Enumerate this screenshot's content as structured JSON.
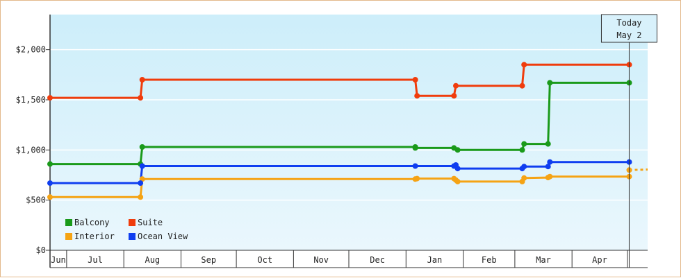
{
  "chart_data": {
    "type": "line",
    "step": true,
    "title": "",
    "xlabel": "",
    "ylabel": "",
    "y_ticks": [
      "$0",
      "$500",
      "$1,000",
      "$1,500",
      "$2,000"
    ],
    "y_tick_values": [
      0,
      500,
      1000,
      1500,
      2000
    ],
    "ylim": [
      0,
      2350
    ],
    "x_months": [
      "Jun",
      "Jul",
      "Aug",
      "Sep",
      "Oct",
      "Nov",
      "Dec",
      "Jan",
      "Feb",
      "Mar",
      "Apr"
    ],
    "x_month_starts": [
      "2016-06-01",
      "2016-07-01",
      "2016-08-01",
      "2016-09-01",
      "2016-10-01",
      "2016-11-01",
      "2016-12-01",
      "2017-01-01",
      "2017-02-01",
      "2017-03-01",
      "2017-04-01",
      "2017-05-01"
    ],
    "xlim": [
      "2016-06-22",
      "2017-05-12"
    ],
    "today": {
      "line1": "Today",
      "line2": "May 2",
      "date": "2017-05-02"
    },
    "background": {
      "top": "#cdeefa",
      "bottom": "#eaf7fd"
    },
    "legend_position": "bottom-left",
    "series": [
      {
        "name": "Balcony",
        "color": "#1a9a1a",
        "points": [
          [
            "2016-06-22",
            860
          ],
          [
            "2016-08-10",
            860
          ],
          [
            "2016-08-11",
            1030
          ],
          [
            "2017-01-06",
            1030
          ],
          [
            "2017-01-06",
            1020
          ],
          [
            "2017-01-27",
            1020
          ],
          [
            "2017-01-29",
            1000
          ],
          [
            "2017-03-05",
            1000
          ],
          [
            "2017-03-06",
            1060
          ],
          [
            "2017-03-19",
            1060
          ],
          [
            "2017-03-20",
            1670
          ],
          [
            "2017-05-02",
            1670
          ]
        ]
      },
      {
        "name": "Suite",
        "color": "#f03c0c",
        "points": [
          [
            "2016-06-22",
            1520
          ],
          [
            "2016-08-10",
            1520
          ],
          [
            "2016-08-11",
            1700
          ],
          [
            "2017-01-06",
            1700
          ],
          [
            "2017-01-07",
            1540
          ],
          [
            "2017-01-27",
            1540
          ],
          [
            "2017-01-28",
            1640
          ],
          [
            "2017-03-05",
            1640
          ],
          [
            "2017-03-06",
            1850
          ],
          [
            "2017-05-02",
            1850
          ]
        ]
      },
      {
        "name": "Interior",
        "color": "#f5a314",
        "points": [
          [
            "2016-06-22",
            530
          ],
          [
            "2016-08-10",
            530
          ],
          [
            "2016-08-11",
            710
          ],
          [
            "2017-01-06",
            710
          ],
          [
            "2017-01-07",
            715
          ],
          [
            "2017-01-27",
            715
          ],
          [
            "2017-01-28",
            700
          ],
          [
            "2017-01-29",
            685
          ],
          [
            "2017-03-05",
            685
          ],
          [
            "2017-03-06",
            720
          ],
          [
            "2017-03-19",
            725
          ],
          [
            "2017-03-20",
            735
          ],
          [
            "2017-05-02",
            735
          ]
        ],
        "projection": [
          [
            "2017-05-02",
            800
          ],
          [
            "2017-05-12",
            805
          ]
        ]
      },
      {
        "name": "Ocean View",
        "color": "#0f3ef0",
        "points": [
          [
            "2016-06-22",
            670
          ],
          [
            "2016-08-10",
            670
          ],
          [
            "2016-08-11",
            840
          ],
          [
            "2017-01-06",
            840
          ],
          [
            "2017-01-27",
            840
          ],
          [
            "2017-01-28",
            850
          ],
          [
            "2017-01-29",
            815
          ],
          [
            "2017-03-05",
            815
          ],
          [
            "2017-03-06",
            835
          ],
          [
            "2017-03-19",
            835
          ],
          [
            "2017-03-20",
            880
          ],
          [
            "2017-05-02",
            880
          ]
        ]
      }
    ]
  }
}
